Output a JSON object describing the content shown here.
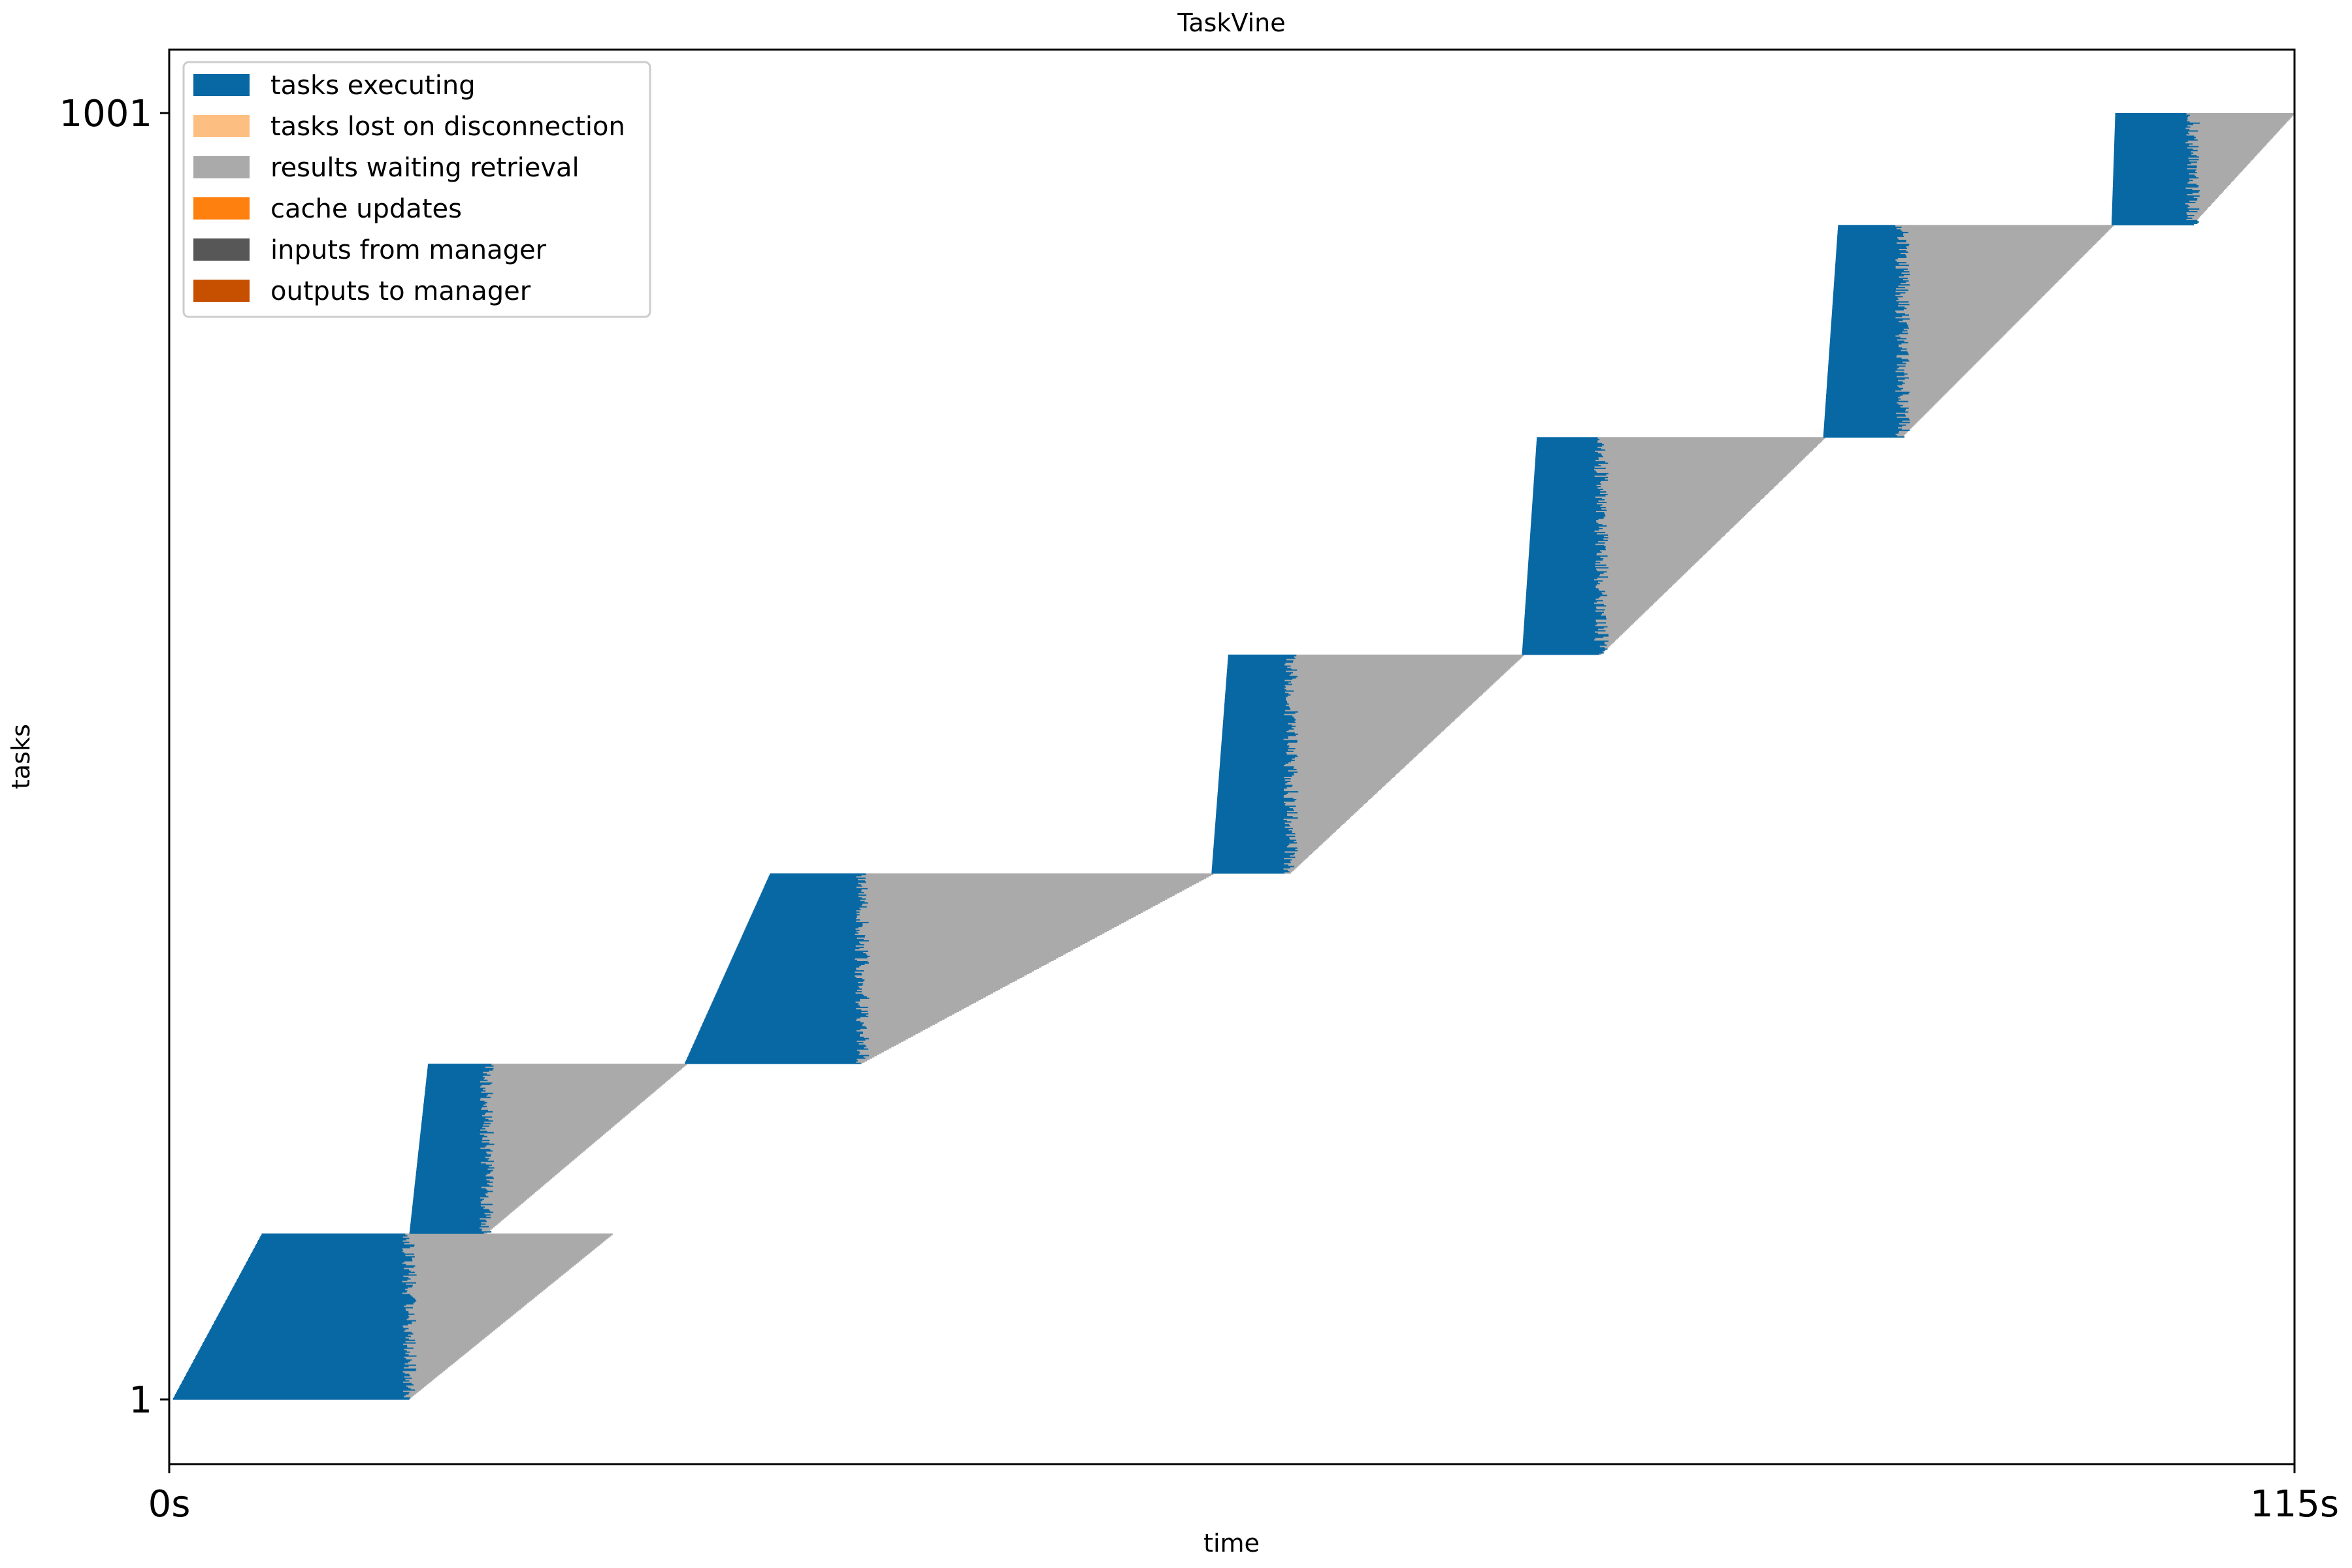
{
  "colors": {
    "executing": "#0868a4",
    "lost": "#fdbf81",
    "waiting": "#aaaaaa",
    "cache": "#fe800e",
    "inputs": "#575757",
    "outputs": "#c75000"
  },
  "chart_data": {
    "type": "gantt",
    "title": "TaskVine",
    "xlabel": "time",
    "ylabel": "tasks",
    "xlim": [
      0,
      115
    ],
    "ylim": [
      1,
      1001
    ],
    "x_ticks": [
      {
        "value": 0,
        "label": "0s"
      },
      {
        "value": 115,
        "label": "115s"
      }
    ],
    "y_ticks": [
      {
        "value": 1,
        "label": "1"
      },
      {
        "value": 1001,
        "label": "1001"
      }
    ],
    "legend": {
      "position": "top-left",
      "entries": [
        {
          "label": "tasks executing",
          "color_key": "executing"
        },
        {
          "label": "tasks lost on disconnection",
          "color_key": "lost"
        },
        {
          "label": "results waiting retrieval",
          "color_key": "waiting"
        },
        {
          "label": "cache updates",
          "color_key": "cache"
        },
        {
          "label": "inputs from manager",
          "color_key": "inputs"
        },
        {
          "label": "outputs to manager",
          "color_key": "outputs"
        }
      ]
    },
    "batches": [
      {
        "task_start": 1,
        "task_end": 130,
        "dispatch_start": 0.2,
        "dispatch_end": 5.0,
        "exec_end": 13.0,
        "wait_end": 24.0
      },
      {
        "task_start": 130,
        "task_end": 262,
        "dispatch_start": 13.0,
        "dispatch_end": 14.0,
        "exec_end": 17.2,
        "wait_end": 28.0
      },
      {
        "task_start": 262,
        "task_end": 410,
        "dispatch_start": 27.9,
        "dispatch_end": 32.5,
        "exec_end": 37.5,
        "wait_end": 56.5
      },
      {
        "task_start": 410,
        "task_end": 580,
        "dispatch_start": 56.4,
        "dispatch_end": 57.3,
        "exec_end": 60.7,
        "wait_end": 73.3
      },
      {
        "task_start": 580,
        "task_end": 749,
        "dispatch_start": 73.2,
        "dispatch_end": 74.0,
        "exec_end": 77.5,
        "wait_end": 89.6
      },
      {
        "task_start": 749,
        "task_end": 914,
        "dispatch_start": 89.5,
        "dispatch_end": 90.3,
        "exec_end": 93.8,
        "wait_end": 105.2
      },
      {
        "task_start": 914,
        "task_end": 1001,
        "dispatch_start": 105.1,
        "dispatch_end": 105.3,
        "exec_end": 109.5,
        "wait_end": 115.0
      }
    ]
  }
}
